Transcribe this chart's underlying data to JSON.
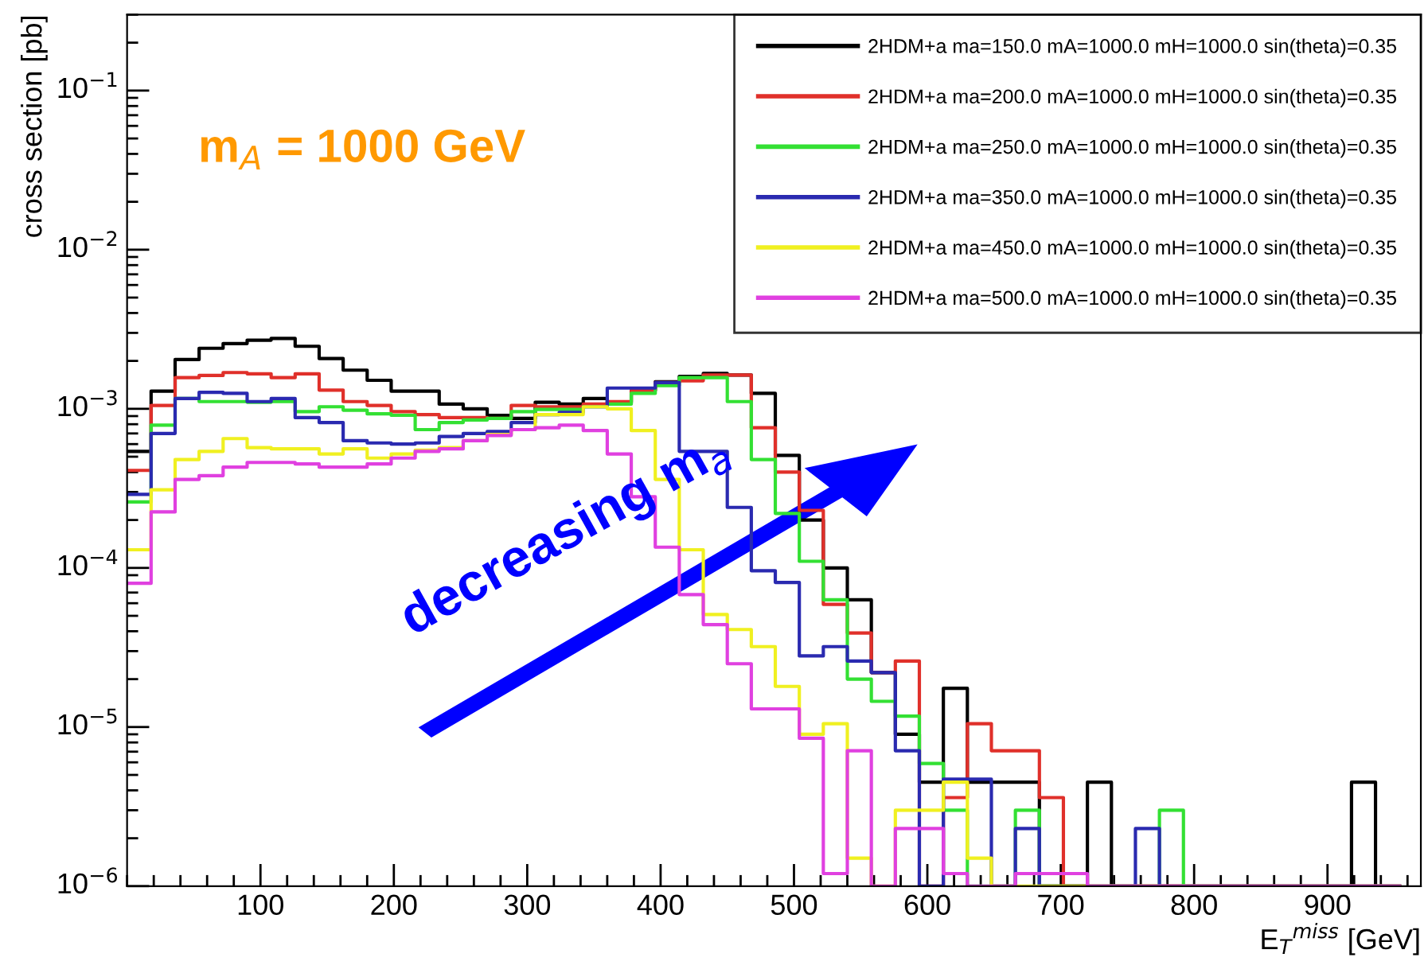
{
  "chart_data": {
    "type": "histogram",
    "ylabel": "cross section [pb]",
    "xlabel": "E$_{T}$$^{miss}$ [GeV]",
    "annotations": [
      "m$_{A}$ = 1000 GeV",
      "decreasing m$_{a}$"
    ],
    "bins": [
      0,
      18,
      36,
      54,
      72,
      90,
      108,
      126,
      144,
      162,
      180,
      198,
      216,
      234,
      252,
      270,
      288,
      306,
      324,
      342,
      360,
      378,
      396,
      414,
      432,
      450,
      468,
      486,
      504,
      522,
      540,
      558,
      576,
      594,
      612,
      630,
      648,
      666,
      684,
      702,
      720,
      738,
      756,
      774,
      792,
      810,
      828,
      846,
      864,
      882,
      900,
      918,
      936,
      954
    ],
    "series": [
      {
        "name": "2HDM+a ma=150.0 mA=1000.0 mH=1000.0 sin(theta)=0.35",
        "color": "#000000",
        "values": [
          0.00054,
          0.00129,
          0.00204,
          0.0024,
          0.00257,
          0.0027,
          0.00277,
          0.00247,
          0.00207,
          0.00175,
          0.00151,
          0.00129,
          0.00129,
          0.00107,
          0.001,
          0.00091,
          0.00087,
          0.0011,
          0.00107,
          0.00116,
          0.00109,
          0.0013,
          0.00148,
          0.0016,
          0.00167,
          0.00163,
          0.00125,
          0.00051,
          0.0002,
          0.0001,
          6.3e-05,
          2.2e-05,
          9e-06,
          4.5e-06,
          1.75e-05,
          4.5e-06,
          4.5e-06,
          4.5e-06,
          null,
          null,
          4.5e-06,
          null,
          null,
          null,
          null,
          null,
          null,
          null,
          null,
          null,
          null,
          4.5e-06,
          null
        ]
      },
      {
        "name": "2HDM+a ma=200.0 mA=1000.0 mH=1000.0 sin(theta)=0.35",
        "color": "#e0302a",
        "values": [
          0.00041,
          0.00105,
          0.00157,
          0.00162,
          0.00169,
          0.00166,
          0.00157,
          0.00166,
          0.00131,
          0.00111,
          0.00105,
          0.00096,
          0.00092,
          0.00088,
          0.00088,
          0.00087,
          0.00105,
          0.00103,
          0.00103,
          0.00107,
          0.00111,
          0.0013,
          0.00146,
          0.0015,
          0.00163,
          0.00163,
          0.00076,
          0.0004,
          0.00023,
          5.9e-05,
          3.9e-05,
          2.2e-05,
          2.6e-05,
          null,
          3.6e-06,
          1.05e-05,
          7.1e-06,
          7.1e-06,
          3.6e-06,
          null,
          null,
          null,
          null,
          null,
          null,
          null,
          null,
          null,
          null,
          null,
          null,
          null,
          null
        ]
      },
      {
        "name": "2HDM+a ma=250.0 mA=1000.0 mH=1000.0 sin(theta)=0.35",
        "color": "#33e033",
        "values": [
          0.00026,
          0.00079,
          0.00116,
          0.00111,
          0.00111,
          0.0011,
          0.00111,
          0.00096,
          0.00103,
          0.00098,
          0.00093,
          0.00091,
          0.00074,
          0.00082,
          0.00085,
          0.00087,
          0.00096,
          0.00099,
          0.00099,
          0.00103,
          0.00107,
          0.00125,
          0.0014,
          0.00157,
          0.00157,
          0.00111,
          0.00048,
          0.00022,
          0.00011,
          6.3e-05,
          2e-05,
          1.45e-05,
          1.17e-05,
          5.9e-06,
          3e-06,
          null,
          null,
          3e-06,
          null,
          null,
          null,
          null,
          null,
          3e-06,
          null,
          null,
          null,
          null,
          null,
          null,
          null,
          null,
          null
        ]
      },
      {
        "name": "2HDM+a ma=350.0 mA=1000.0 mH=1000.0 sin(theta)=0.35",
        "color": "#2a2ab0",
        "values": [
          0.00029,
          0.0007,
          0.00116,
          0.00127,
          0.00125,
          0.00111,
          0.00116,
          0.00088,
          0.00082,
          0.00063,
          0.00061,
          0.0006,
          0.00061,
          0.00067,
          0.0007,
          0.00072,
          0.00082,
          0.00092,
          0.00095,
          0.00103,
          0.00135,
          0.00135,
          0.00146,
          0.00054,
          0.00054,
          0.00024,
          9.6e-05,
          8.1e-05,
          2.8e-05,
          3.2e-05,
          2.6e-05,
          2.2e-05,
          7.1e-06,
          null,
          4.7e-06,
          4.7e-06,
          null,
          2.3e-06,
          null,
          null,
          null,
          null,
          2.3e-06,
          null,
          null,
          null,
          null,
          null,
          null,
          null,
          null,
          null,
          null
        ]
      },
      {
        "name": "2HDM+a ma=450.0 mA=1000.0 mH=1000.0 sin(theta)=0.35",
        "color": "#f0f020",
        "values": [
          0.00013,
          0.00031,
          0.00048,
          0.00054,
          0.00065,
          0.00057,
          0.00056,
          0.00056,
          0.00052,
          0.00056,
          0.00049,
          0.00052,
          0.00055,
          0.00057,
          0.00063,
          0.00069,
          0.00074,
          0.00092,
          0.00092,
          0.00103,
          0.001,
          0.00073,
          0.00036,
          0.00013,
          5.1e-05,
          4.1e-05,
          3.2e-05,
          1.8e-05,
          9e-06,
          1.05e-05,
          1.5e-06,
          null,
          3e-06,
          3e-06,
          4.5e-06,
          1.5e-06,
          null,
          null,
          null,
          null,
          null,
          null,
          null,
          null,
          null,
          null,
          null,
          null,
          null,
          null,
          null,
          null,
          null
        ]
      },
      {
        "name": "2HDM+a ma=500.0 mA=1000.0 mH=1000.0 sin(theta)=0.35",
        "color": "#e040e0",
        "values": [
          8e-05,
          0.000225,
          0.00036,
          0.00038,
          0.00043,
          0.00046,
          0.00046,
          0.00045,
          0.00043,
          0.00043,
          0.00045,
          0.00049,
          0.00054,
          0.00056,
          0.00063,
          0.00068,
          0.00074,
          0.00076,
          0.00079,
          0.00073,
          0.00052,
          0.00028,
          0.000135,
          6.8e-05,
          4.4e-05,
          2.5e-05,
          1.3e-05,
          1.3e-05,
          8.5e-06,
          1.2e-06,
          7.1e-06,
          null,
          2.3e-06,
          2.3e-06,
          1.2e-06,
          null,
          null,
          1.2e-06,
          1.2e-06,
          1.2e-06,
          null,
          null,
          null,
          null,
          null,
          null,
          null,
          null,
          null,
          null,
          null,
          null,
          null
        ]
      }
    ],
    "log": true,
    "xlim": [
      0,
      970
    ],
    "ylim": [
      1e-06,
      0.3
    ],
    "xticks": [
      100,
      200,
      300,
      400,
      500,
      600,
      700,
      800,
      900
    ],
    "yticks": [
      {
        "value": 1e-06,
        "label": "10$^{−6}$"
      },
      {
        "value": 1e-05,
        "label": "10$^{−5}$"
      },
      {
        "value": 0.0001,
        "label": "10$^{−4}$"
      },
      {
        "value": 0.001,
        "label": "10$^{−3}$"
      },
      {
        "value": 0.01,
        "label": "10$^{−2}$"
      },
      {
        "value": 0.1,
        "label": "10$^{−1}$"
      }
    ],
    "grid": false,
    "legend": "top right"
  }
}
